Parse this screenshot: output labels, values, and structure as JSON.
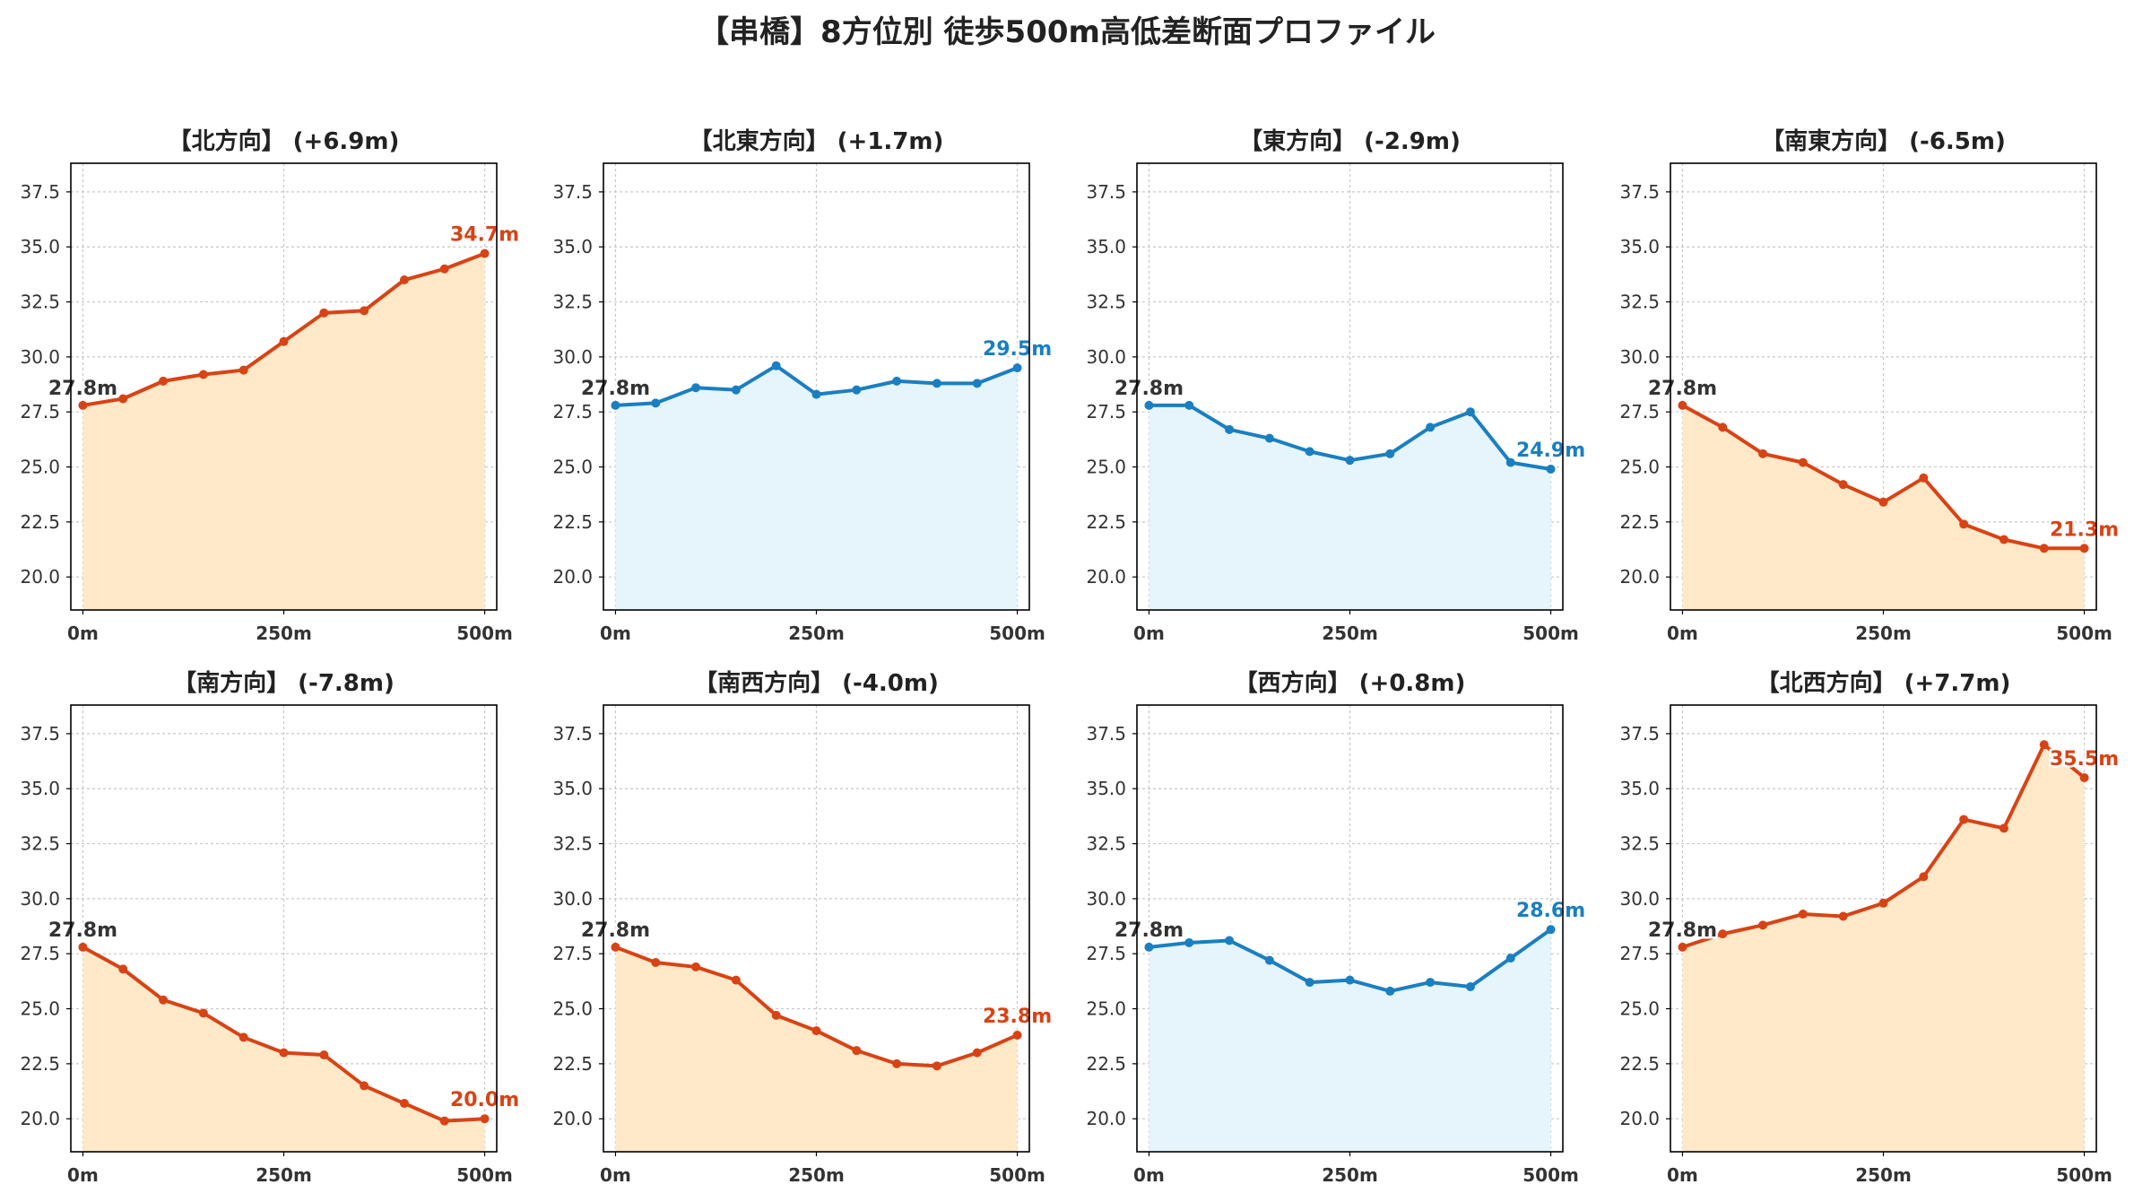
{
  "suptitle": "【串橋】8方位別 徒歩500m高低差断面プロファイル",
  "colors": {
    "up": "#d84315",
    "up_fill": "#ffe9c9",
    "down": "#1a7fc1",
    "down_fill": "#e6f4fb",
    "start_label": "#333333",
    "grid": "#c8c8c8"
  },
  "chart_data": [
    {
      "type": "area",
      "title": "【北方向】 (+6.9m)",
      "color": "up",
      "x": [
        0,
        50,
        100,
        150,
        200,
        250,
        300,
        350,
        400,
        450,
        500
      ],
      "y": [
        27.8,
        28.1,
        28.9,
        29.2,
        29.4,
        30.7,
        32.0,
        32.1,
        33.5,
        34.0,
        34.7
      ],
      "start_label": "27.8m",
      "end_label": "34.7m",
      "xticks": [
        "0m",
        "250m",
        "500m"
      ],
      "yticks": [
        "20.0",
        "22.5",
        "25.0",
        "27.5",
        "30.0",
        "32.5",
        "35.0",
        "37.5"
      ],
      "ylim": [
        18.5,
        38.8
      ],
      "xlim": [
        -15,
        515
      ],
      "grid": true
    },
    {
      "type": "area",
      "title": "【北東方向】 (+1.7m)",
      "color": "down",
      "x": [
        0,
        50,
        100,
        150,
        200,
        250,
        300,
        350,
        400,
        450,
        500
      ],
      "y": [
        27.8,
        27.9,
        28.6,
        28.5,
        29.6,
        28.3,
        28.5,
        28.9,
        28.8,
        28.8,
        29.5
      ],
      "start_label": "27.8m",
      "end_label": "29.5m",
      "xticks": [
        "0m",
        "250m",
        "500m"
      ],
      "yticks": [
        "20.0",
        "22.5",
        "25.0",
        "27.5",
        "30.0",
        "32.5",
        "35.0",
        "37.5"
      ],
      "ylim": [
        18.5,
        38.8
      ],
      "xlim": [
        -15,
        515
      ],
      "grid": true
    },
    {
      "type": "area",
      "title": "【東方向】 (-2.9m)",
      "color": "down",
      "x": [
        0,
        50,
        100,
        150,
        200,
        250,
        300,
        350,
        400,
        450,
        500
      ],
      "y": [
        27.8,
        27.8,
        26.7,
        26.3,
        25.7,
        25.3,
        25.6,
        26.8,
        27.5,
        25.2,
        24.9
      ],
      "start_label": "27.8m",
      "end_label": "24.9m",
      "xticks": [
        "0m",
        "250m",
        "500m"
      ],
      "yticks": [
        "20.0",
        "22.5",
        "25.0",
        "27.5",
        "30.0",
        "32.5",
        "35.0",
        "37.5"
      ],
      "ylim": [
        18.5,
        38.8
      ],
      "xlim": [
        -15,
        515
      ],
      "grid": true
    },
    {
      "type": "area",
      "title": "【南東方向】 (-6.5m)",
      "color": "up",
      "x": [
        0,
        50,
        100,
        150,
        200,
        250,
        300,
        350,
        400,
        450,
        500
      ],
      "y": [
        27.8,
        26.8,
        25.6,
        25.2,
        24.2,
        23.4,
        24.5,
        22.4,
        21.7,
        21.3,
        21.3
      ],
      "start_label": "27.8m",
      "end_label": "21.3m",
      "xticks": [
        "0m",
        "250m",
        "500m"
      ],
      "yticks": [
        "20.0",
        "22.5",
        "25.0",
        "27.5",
        "30.0",
        "32.5",
        "35.0",
        "37.5"
      ],
      "ylim": [
        18.5,
        38.8
      ],
      "xlim": [
        -15,
        515
      ],
      "grid": true
    },
    {
      "type": "area",
      "title": "【南方向】 (-7.8m)",
      "color": "up",
      "x": [
        0,
        50,
        100,
        150,
        200,
        250,
        300,
        350,
        400,
        450,
        500
      ],
      "y": [
        27.8,
        26.8,
        25.4,
        24.8,
        23.7,
        23.0,
        22.9,
        21.5,
        20.7,
        19.9,
        20.0
      ],
      "start_label": "27.8m",
      "end_label": "20.0m",
      "xticks": [
        "0m",
        "250m",
        "500m"
      ],
      "yticks": [
        "20.0",
        "22.5",
        "25.0",
        "27.5",
        "30.0",
        "32.5",
        "35.0",
        "37.5"
      ],
      "ylim": [
        18.5,
        38.8
      ],
      "xlim": [
        -15,
        515
      ],
      "grid": true
    },
    {
      "type": "area",
      "title": "【南西方向】 (-4.0m)",
      "color": "up",
      "x": [
        0,
        50,
        100,
        150,
        200,
        250,
        300,
        350,
        400,
        450,
        500
      ],
      "y": [
        27.8,
        27.1,
        26.9,
        26.3,
        24.7,
        24.0,
        23.1,
        22.5,
        22.4,
        23.0,
        23.8
      ],
      "start_label": "27.8m",
      "end_label": "23.8m",
      "xticks": [
        "0m",
        "250m",
        "500m"
      ],
      "yticks": [
        "20.0",
        "22.5",
        "25.0",
        "27.5",
        "30.0",
        "32.5",
        "35.0",
        "37.5"
      ],
      "ylim": [
        18.5,
        38.8
      ],
      "xlim": [
        -15,
        515
      ],
      "grid": true
    },
    {
      "type": "area",
      "title": "【西方向】 (+0.8m)",
      "color": "down",
      "x": [
        0,
        50,
        100,
        150,
        200,
        250,
        300,
        350,
        400,
        450,
        500
      ],
      "y": [
        27.8,
        28.0,
        28.1,
        27.2,
        26.2,
        26.3,
        25.8,
        26.2,
        26.0,
        27.3,
        28.6
      ],
      "start_label": "27.8m",
      "end_label": "28.6m",
      "xticks": [
        "0m",
        "250m",
        "500m"
      ],
      "yticks": [
        "20.0",
        "22.5",
        "25.0",
        "27.5",
        "30.0",
        "32.5",
        "35.0",
        "37.5"
      ],
      "ylim": [
        18.5,
        38.8
      ],
      "xlim": [
        -15,
        515
      ],
      "grid": true
    },
    {
      "type": "area",
      "title": "【北西方向】 (+7.7m)",
      "color": "up",
      "x": [
        0,
        50,
        100,
        150,
        200,
        250,
        300,
        350,
        400,
        450,
        500
      ],
      "y": [
        27.8,
        28.4,
        28.8,
        29.3,
        29.2,
        29.8,
        31.0,
        33.6,
        33.2,
        37.0,
        35.5
      ],
      "start_label": "27.8m",
      "end_label": "35.5m",
      "xticks": [
        "0m",
        "250m",
        "500m"
      ],
      "yticks": [
        "20.0",
        "22.5",
        "25.0",
        "27.5",
        "30.0",
        "32.5",
        "35.0",
        "37.5"
      ],
      "ylim": [
        18.5,
        38.8
      ],
      "xlim": [
        -15,
        515
      ],
      "grid": true
    }
  ]
}
